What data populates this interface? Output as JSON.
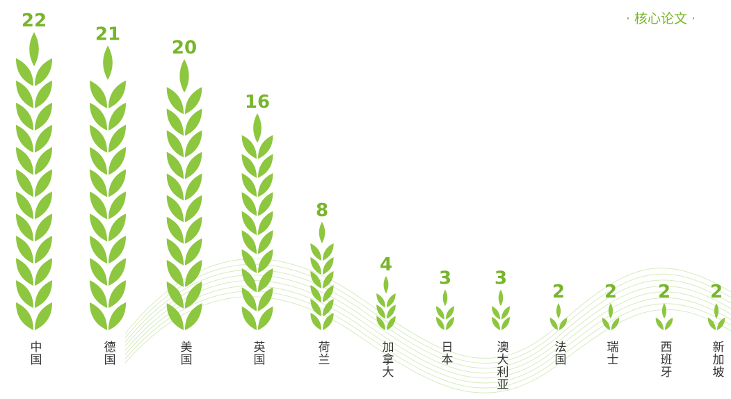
{
  "chart_data": {
    "type": "pictograph",
    "title": "· 核心论文 ·",
    "categories": [
      "中国",
      "德国",
      "美国",
      "英国",
      "荷兰",
      "加拿大",
      "日本",
      "澳大利亚",
      "法国",
      "瑞士",
      "西班牙",
      "新加坡"
    ],
    "values": [
      22,
      21,
      20,
      16,
      8,
      4,
      3,
      3,
      2,
      2,
      2,
      2
    ],
    "color": "#8dc63f"
  }
}
